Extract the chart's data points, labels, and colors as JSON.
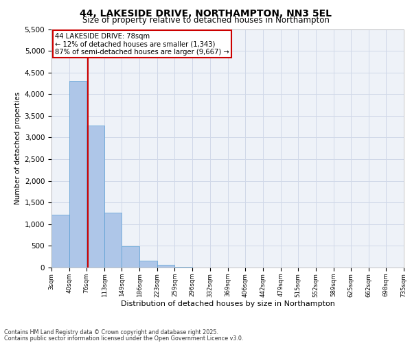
{
  "title": "44, LAKESIDE DRIVE, NORTHAMPTON, NN3 5EL",
  "subtitle": "Size of property relative to detached houses in Northampton",
  "xlabel": "Distribution of detached houses by size in Northampton",
  "ylabel": "Number of detached properties",
  "property_size": 78,
  "property_label": "44 LAKESIDE DRIVE: 78sqm",
  "annotation_line1": "← 12% of detached houses are smaller (1,343)",
  "annotation_line2": "87% of semi-detached houses are larger (9,667) →",
  "bin_edges": [
    3,
    40,
    76,
    113,
    149,
    186,
    223,
    259,
    296,
    332,
    369,
    406,
    442,
    479,
    515,
    552,
    589,
    625,
    662,
    698,
    735
  ],
  "bar_heights": [
    1220,
    4300,
    3270,
    1260,
    490,
    165,
    60,
    10,
    0,
    0,
    0,
    0,
    0,
    0,
    0,
    0,
    0,
    0,
    0,
    0
  ],
  "bar_color": "#aec6e8",
  "bar_edge_color": "#5a9fd4",
  "grid_color": "#d0d8e8",
  "background_color": "#eef2f8",
  "vline_color": "#cc0000",
  "annotation_box_color": "#cc0000",
  "ylim": [
    0,
    5500
  ],
  "yticks": [
    0,
    500,
    1000,
    1500,
    2000,
    2500,
    3000,
    3500,
    4000,
    4500,
    5000,
    5500
  ],
  "footer_line1": "Contains HM Land Registry data © Crown copyright and database right 2025.",
  "footer_line2": "Contains public sector information licensed under the Open Government Licence v3.0."
}
